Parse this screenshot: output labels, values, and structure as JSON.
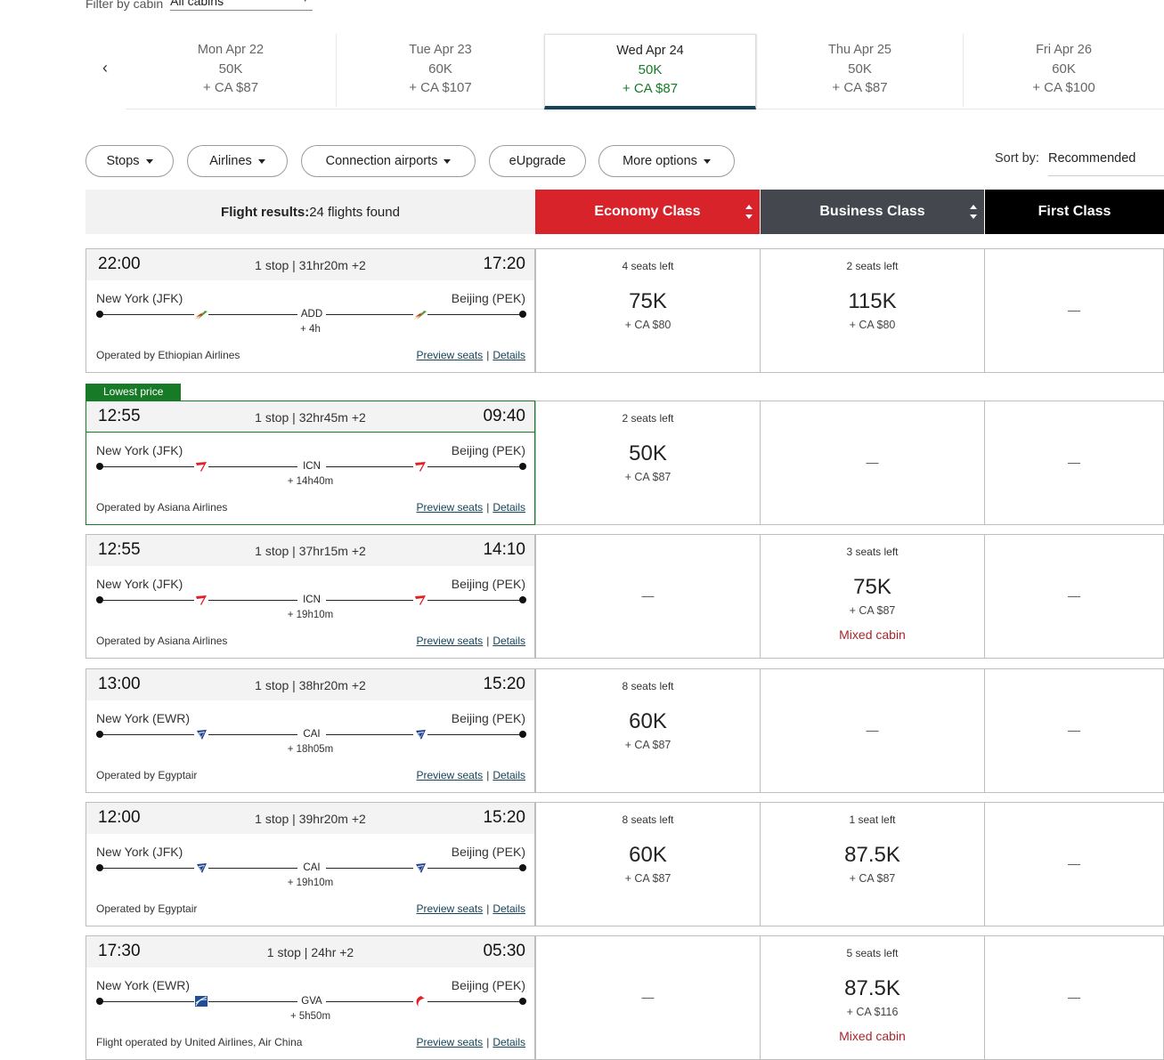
{
  "filter": {
    "label": "Filter by cabin",
    "value": "All cabins"
  },
  "dates": [
    {
      "day": "Mon Apr 22",
      "miles": "50K",
      "tax": "+ CA $87",
      "selected": false
    },
    {
      "day": "Tue Apr 23",
      "miles": "60K",
      "tax": "+ CA $107",
      "selected": false
    },
    {
      "day": "Wed Apr 24",
      "miles": "50K",
      "tax": "+ CA $87",
      "selected": true
    },
    {
      "day": "Thu Apr 25",
      "miles": "50K",
      "tax": "+ CA $87",
      "selected": false
    },
    {
      "day": "Fri Apr 26",
      "miles": "60K",
      "tax": "+ CA $100",
      "selected": false
    }
  ],
  "pills": {
    "stops": "Stops",
    "airlines": "Airlines",
    "connection": "Connection airports",
    "eupgrade": "eUpgrade",
    "more": "More options"
  },
  "sort": {
    "label": "Sort by:",
    "value": "Recommended"
  },
  "results": {
    "label": "Flight results:",
    "count": "24 flights found"
  },
  "cabins": {
    "economy": {
      "label": "Economy Class",
      "color": "#d8232a"
    },
    "business": {
      "label": "Business Class",
      "color": "#44484e"
    },
    "first": {
      "label": "First Class",
      "color": "#000000"
    }
  },
  "links": {
    "preview": "Preview seats",
    "details": "Details",
    "separator": "|"
  },
  "lowest_label": "Lowest price",
  "flights": [
    {
      "dep": "22:00",
      "arr": "17:20",
      "duration": "1 stop | 31hr20m +2",
      "origin": "New York (JFK)",
      "dest": "Beijing (PEK)",
      "stop_code": "ADD",
      "layover": "+ 4h",
      "operated": "Operated by Ethiopian Airlines",
      "logo1": "ethiopian-logo-icon",
      "logo2": "ethiopian-logo-icon",
      "lowest": false,
      "economy": {
        "seats": "4 seats left",
        "miles": "75K",
        "tax": "+ CA $80",
        "mixed": ""
      },
      "business": {
        "seats": "2 seats left",
        "miles": "115K",
        "tax": "+ CA $80",
        "mixed": ""
      },
      "first": {
        "dash": "—"
      }
    },
    {
      "dep": "12:55",
      "arr": "09:40",
      "duration": "1 stop | 32hr45m +2",
      "origin": "New York (JFK)",
      "dest": "Beijing (PEK)",
      "stop_code": "ICN",
      "layover": "+ 14h40m",
      "operated": "Operated by Asiana Airlines",
      "logo1": "asiana-logo-icon",
      "logo2": "asiana-logo-icon",
      "lowest": true,
      "economy": {
        "seats": "2 seats left",
        "miles": "50K",
        "tax": "+ CA $87",
        "mixed": ""
      },
      "business": {
        "dash": "—"
      },
      "first": {
        "dash": "—"
      }
    },
    {
      "dep": "12:55",
      "arr": "14:10",
      "duration": "1 stop | 37hr15m +2",
      "origin": "New York (JFK)",
      "dest": "Beijing (PEK)",
      "stop_code": "ICN",
      "layover": "+ 19h10m",
      "operated": "Operated by Asiana Airlines",
      "logo1": "asiana-logo-icon",
      "logo2": "asiana-logo-icon",
      "lowest": false,
      "economy": {
        "dash": "—"
      },
      "business": {
        "seats": "3 seats left",
        "miles": "75K",
        "tax": "+ CA $87",
        "mixed": "Mixed cabin"
      },
      "first": {
        "dash": "—"
      }
    },
    {
      "dep": "13:00",
      "arr": "15:20",
      "duration": "1 stop | 38hr20m +2",
      "origin": "New York (EWR)",
      "dest": "Beijing (PEK)",
      "stop_code": "CAI",
      "layover": "+ 18h05m",
      "operated": "Operated by Egyptair",
      "logo1": "egyptair-logo-icon",
      "logo2": "egyptair-logo-icon",
      "lowest": false,
      "economy": {
        "seats": "8 seats left",
        "miles": "60K",
        "tax": "+ CA $87",
        "mixed": ""
      },
      "business": {
        "dash": "—"
      },
      "first": {
        "dash": "—"
      }
    },
    {
      "dep": "12:00",
      "arr": "15:20",
      "duration": "1 stop | 39hr20m +2",
      "origin": "New York (JFK)",
      "dest": "Beijing (PEK)",
      "stop_code": "CAI",
      "layover": "+ 19h10m",
      "operated": "Operated by Egyptair",
      "logo1": "egyptair-logo-icon",
      "logo2": "egyptair-logo-icon",
      "lowest": false,
      "economy": {
        "seats": "8 seats left",
        "miles": "60K",
        "tax": "+ CA $87",
        "mixed": ""
      },
      "business": {
        "seats": "1 seat left",
        "miles": "87.5K",
        "tax": "+ CA $87",
        "mixed": ""
      },
      "first": {
        "dash": "—"
      }
    },
    {
      "dep": "17:30",
      "arr": "05:30",
      "duration": "1 stop | 24hr +2",
      "origin": "New York (EWR)",
      "dest": "Beijing (PEK)",
      "stop_code": "GVA",
      "layover": "+ 5h50m",
      "operated": "Flight operated by United Airlines, Air China",
      "logo1": "united-logo-icon",
      "logo2": "air-china-logo-icon",
      "lowest": false,
      "economy": {
        "dash": "—"
      },
      "business": {
        "seats": "5 seats left",
        "miles": "87.5K",
        "tax": "+ CA $116",
        "mixed": "Mixed cabin"
      },
      "first": {
        "dash": "—"
      }
    }
  ]
}
